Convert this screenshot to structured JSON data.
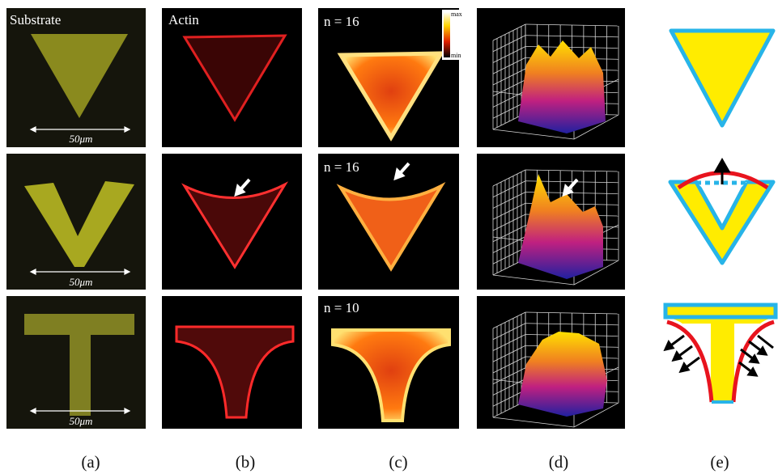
{
  "panels": {
    "substrate_label": "Substrate",
    "actin_label": "Actin",
    "counts": [
      "n = 16",
      "n = 16",
      "n = 10"
    ],
    "scale_bars": [
      "50μm",
      "50μm",
      "50μm"
    ],
    "colorbar": {
      "max": "max",
      "min": "min"
    }
  },
  "captions": [
    "(a)",
    "(b)",
    "(c)",
    "(d)",
    "(e)"
  ]
}
